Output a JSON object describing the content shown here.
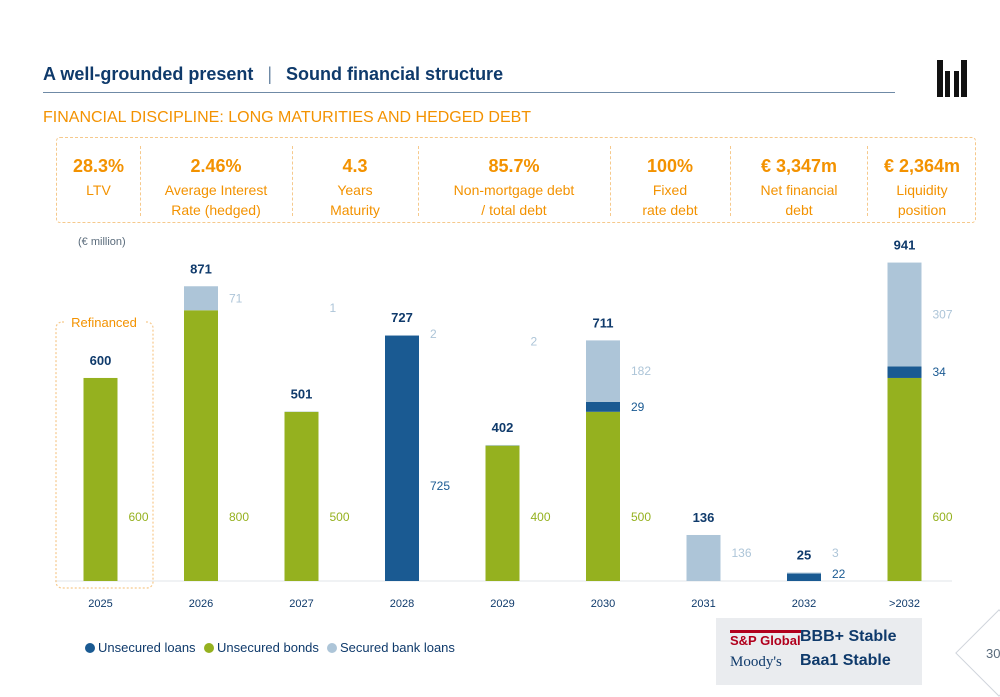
{
  "header": {
    "title": "A well-grounded present",
    "separator": "|",
    "section": "Sound financial structure",
    "subtitle": "FINANCIAL DISCIPLINE: LONG MATURITIES AND HEDGED DEBT"
  },
  "kpis": [
    {
      "value": "28.3%",
      "label1": "LTV",
      "label2": ""
    },
    {
      "value": "2.46%",
      "label1": "Average Interest",
      "label2": "Rate (hedged)"
    },
    {
      "value": "4.3",
      "label1": "Years",
      "label2": "Maturity"
    },
    {
      "value": "85.7%",
      "label1": "Non-mortgage debt",
      "label2": "/ total debt"
    },
    {
      "value": "100%",
      "label1": "Fixed",
      "label2": "rate debt"
    },
    {
      "value": "€ 3,347m",
      "label1": "Net financial",
      "label2": "debt"
    },
    {
      "value": "€ 2,364m",
      "label1": "Liquidity",
      "label2": "position"
    }
  ],
  "chart_data": {
    "type": "bar",
    "stacked": true,
    "unit_label": "(€ million)",
    "categories": [
      "2025",
      "2026",
      "2027",
      "2028",
      "2029",
      "2030",
      "2031",
      "2032",
      ">2032"
    ],
    "totals": [
      600,
      871,
      501,
      727,
      402,
      711,
      136,
      25,
      941
    ],
    "series": [
      {
        "name": "Unsecured bonds",
        "color": "#95b11f",
        "values": [
          600,
          800,
          500,
          0,
          400,
          500,
          0,
          0,
          600
        ],
        "labels": [
          "600",
          "800",
          "500",
          "",
          "400",
          "500",
          "",
          "",
          "600"
        ]
      },
      {
        "name": "Unsecured loans",
        "color": "#1a5a92",
        "values": [
          0,
          0,
          0,
          725,
          0,
          29,
          0,
          22,
          34
        ],
        "labels": [
          "",
          "",
          "",
          "725",
          "",
          "29",
          "",
          "22",
          "34"
        ]
      },
      {
        "name": "Secured bank loans",
        "color": "#adc5d8",
        "values": [
          0,
          71,
          1,
          2,
          2,
          182,
          136,
          3,
          307
        ],
        "labels": [
          "",
          "71",
          "1",
          "2",
          "2",
          "182",
          "136",
          "3",
          "307"
        ]
      }
    ],
    "annotation": "Refinanced",
    "legend_position": "bottom-left"
  },
  "legend": {
    "unsecured_loans": "Unsecured loans",
    "unsecured_bonds": "Unsecured bonds",
    "secured_bank_loans": "Secured bank loans"
  },
  "ratings": {
    "sp_logo": "S&P Global",
    "sp_rating": "BBB+ Stable",
    "moodys_logo": "Moody's",
    "moodys_rating": "Baa1 Stable"
  },
  "page_number": "30",
  "colors": {
    "orange": "#f39200",
    "navy": "#0f3a6b",
    "green": "#95b11f",
    "dark_blue": "#1a5a92",
    "light_blue": "#adc5d8"
  }
}
